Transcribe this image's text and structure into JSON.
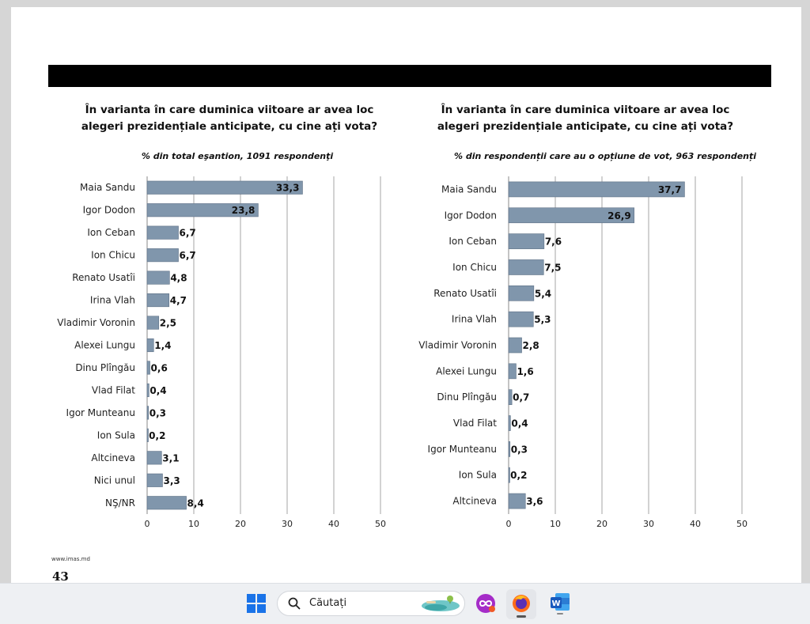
{
  "footer": {
    "url": "www.imas.md",
    "page_number": "43"
  },
  "taskbar": {
    "search_label": "Căutați"
  },
  "chart_data": [
    {
      "type": "bar",
      "orientation": "horizontal",
      "title": "În varianta în care duminica viitoare ar avea loc alegeri prezidențiale anticipate, cu cine ați vota?",
      "subtitle": "% din total eşantion, 1091 respondenţi",
      "categories": [
        "Maia Sandu",
        "Igor Dodon",
        "Ion Ceban",
        "Ion Chicu",
        "Renato Usatîi",
        "Irina Vlah",
        "Vladimir Voronin",
        "Alexei Lungu",
        "Dinu Plîngău",
        "Vlad Filat",
        "Igor Munteanu",
        "Ion Sula",
        "Altcineva",
        "Nici unul",
        "NŞ/NR"
      ],
      "values": [
        33.3,
        23.8,
        6.7,
        6.7,
        4.8,
        4.7,
        2.5,
        1.4,
        0.6,
        0.4,
        0.3,
        0.2,
        3.1,
        3.3,
        8.4
      ],
      "labels": [
        "33,3",
        "23,8",
        "6,7",
        "6,7",
        "4,8",
        "4,7",
        "2,5",
        "1,4",
        "0,6",
        "0,4",
        "0,3",
        "0,2",
        "3,1",
        "3,3",
        "8,4"
      ],
      "xlim": [
        0,
        50
      ],
      "xticks": [
        0,
        10,
        20,
        30,
        40,
        50
      ],
      "bar_color": "#8096ac",
      "grid": true
    },
    {
      "type": "bar",
      "orientation": "horizontal",
      "title": "În varianta în care duminica viitoare ar avea loc alegeri prezidențiale anticipate, cu cine ați vota?",
      "subtitle": "% din respondenții care au o opțiune de vot, 963 respondenți",
      "categories": [
        "Maia Sandu",
        "Igor Dodon",
        "Ion Ceban",
        "Ion Chicu",
        "Renato Usatîi",
        "Irina Vlah",
        "Vladimir Voronin",
        "Alexei Lungu",
        "Dinu Plîngău",
        "Vlad Filat",
        "Igor Munteanu",
        "Ion Sula",
        "Altcineva"
      ],
      "values": [
        37.7,
        26.9,
        7.6,
        7.5,
        5.4,
        5.3,
        2.8,
        1.6,
        0.7,
        0.4,
        0.3,
        0.2,
        3.6
      ],
      "labels": [
        "37,7",
        "26,9",
        "7,6",
        "7,5",
        "5,4",
        "5,3",
        "2,8",
        "1,6",
        "0,7",
        "0,4",
        "0,3",
        "0,2",
        "3,6"
      ],
      "xlim": [
        0,
        50
      ],
      "xticks": [
        0,
        10,
        20,
        30,
        40,
        50
      ],
      "bar_color": "#8096ac",
      "grid": true
    }
  ]
}
